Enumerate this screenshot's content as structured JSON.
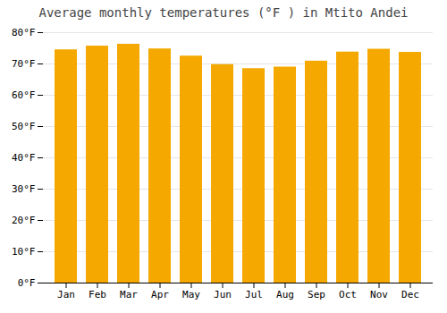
{
  "chart_data": {
    "type": "bar",
    "title": "Average monthly temperatures (°F ) in Mtito Andei",
    "categories": [
      "Jan",
      "Feb",
      "Mar",
      "Apr",
      "May",
      "Jun",
      "Jul",
      "Aug",
      "Sep",
      "Oct",
      "Nov",
      "Dec"
    ],
    "values": [
      74.5,
      75.7,
      76.3,
      74.8,
      72.5,
      69.8,
      68.5,
      69.0,
      70.9,
      73.8,
      74.7,
      73.7
    ],
    "color": "#F4A800",
    "ylim": [
      0,
      80
    ],
    "yticks": [
      {
        "value": 0,
        "label": "0°F"
      },
      {
        "value": 10,
        "label": "10°F"
      },
      {
        "value": 20,
        "label": "20°F"
      },
      {
        "value": 30,
        "label": "30°F"
      },
      {
        "value": 40,
        "label": "40°F"
      },
      {
        "value": 50,
        "label": "50°F"
      },
      {
        "value": 60,
        "label": "60°F"
      },
      {
        "value": 70,
        "label": "70°F"
      },
      {
        "value": 80,
        "label": "80°F"
      }
    ],
    "grid": true
  }
}
